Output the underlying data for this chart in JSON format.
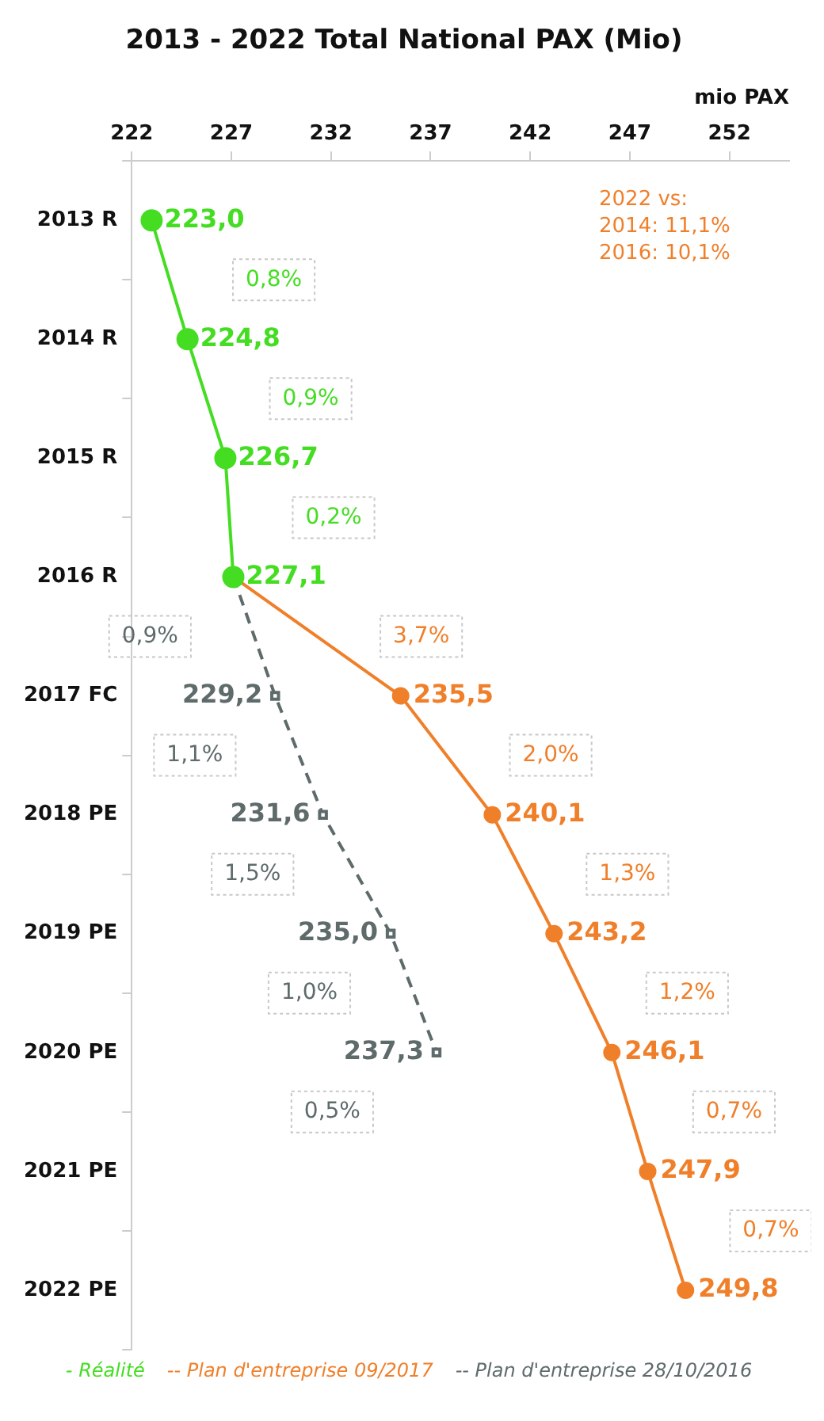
{
  "chart_data": {
    "type": "line",
    "orientation": "horizontal",
    "title": "2013 - 2022 Total National PAX (Mio)",
    "xlabel": "mio PAX",
    "categories": [
      "2013 R",
      "2014 R",
      "2015 R",
      "2016 R",
      "2017 FC",
      "2018 PE",
      "2019 PE",
      "2020 PE",
      "2021 PE",
      "2022 PE"
    ],
    "series": [
      {
        "name": "- Réalité",
        "color": "#44dd22",
        "marker": "circle",
        "line_style": "solid",
        "values": [
          223.0,
          224.8,
          226.7,
          227.1,
          null,
          null,
          null,
          null,
          null,
          null
        ],
        "value_labels": [
          "223,0",
          "224,8",
          "226,7",
          "227,1",
          null,
          null,
          null,
          null,
          null,
          null
        ]
      },
      {
        "name": "-- Plan d'entreprise 09/2017",
        "color": "#f07f2a",
        "marker": "circle",
        "line_style": "solid",
        "values": [
          null,
          null,
          null,
          227.1,
          235.5,
          240.1,
          243.2,
          246.1,
          247.9,
          249.8
        ],
        "value_labels": [
          null,
          null,
          null,
          null,
          "235,5",
          "240,1",
          "243,2",
          "246,1",
          "247,9",
          "249,8"
        ]
      },
      {
        "name": "-- Plan d'entreprise 28/10/2016",
        "color": "#5f6b6b",
        "marker": "square",
        "line_style": "dashed",
        "values": [
          null,
          null,
          null,
          227.1,
          229.2,
          231.6,
          235.0,
          237.3,
          null,
          null
        ],
        "value_labels": [
          null,
          null,
          null,
          null,
          "229,2",
          "231,6",
          "235,0",
          "237,3",
          null,
          null
        ]
      }
    ],
    "xlim": [
      222,
      255
    ],
    "xticks": [
      222,
      227,
      232,
      237,
      242,
      247,
      252
    ],
    "grid": false,
    "legend": "bottom",
    "annotations": [
      "2022 vs:\n2014: 11,1%\n2016: 10,1%",
      "0,8%",
      "0,9%",
      "0,2%",
      "3,7%",
      "2,0%",
      "1,3%",
      "1,2%",
      "0,7%",
      "0,7%",
      "0,9%",
      "1,1%",
      "1,5%",
      "1,0%",
      "0,5%"
    ]
  }
}
